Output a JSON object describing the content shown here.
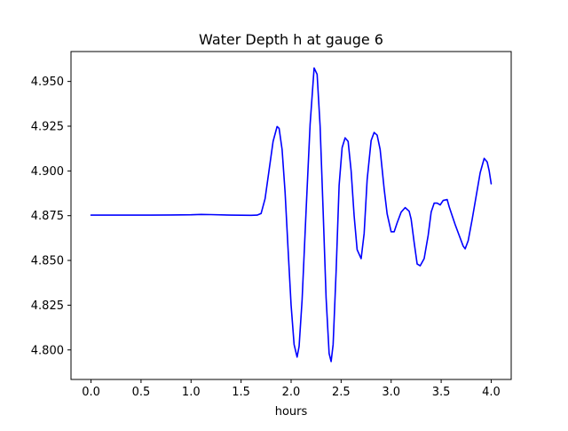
{
  "chart_data": {
    "type": "line",
    "title": "Water Depth h at gauge 6",
    "xlabel": "hours",
    "ylabel": "",
    "xlim": [
      -0.2,
      4.2
    ],
    "ylim": [
      4.7835,
      4.9667
    ],
    "xticks": [
      0.0,
      0.5,
      1.0,
      1.5,
      2.0,
      2.5,
      3.0,
      3.5,
      4.0
    ],
    "xtick_labels": [
      "0.0",
      "0.5",
      "1.0",
      "1.5",
      "2.0",
      "2.5",
      "3.0",
      "3.5",
      "4.0"
    ],
    "yticks": [
      4.8,
      4.825,
      4.85,
      4.875,
      4.9,
      4.925,
      4.95
    ],
    "ytick_labels": [
      "4.800",
      "4.825",
      "4.850",
      "4.875",
      "4.900",
      "4.925",
      "4.950"
    ],
    "grid": false,
    "line_color": "#0000ff",
    "series": [
      {
        "x": [
          0.0,
          0.2,
          0.4,
          0.6,
          0.8,
          1.0,
          1.1,
          1.2,
          1.4,
          1.6,
          1.66,
          1.7,
          1.74,
          1.78,
          1.82,
          1.86,
          1.88,
          1.91,
          1.94,
          1.97,
          2.0,
          2.03,
          2.06,
          2.08,
          2.11,
          2.15,
          2.19,
          2.23,
          2.26,
          2.29,
          2.32,
          2.35,
          2.38,
          2.4,
          2.42,
          2.45,
          2.48,
          2.51,
          2.54,
          2.57,
          2.6,
          2.63,
          2.66,
          2.7,
          2.73,
          2.76,
          2.8,
          2.83,
          2.86,
          2.89,
          2.93,
          2.96,
          3.0,
          3.03,
          3.06,
          3.1,
          3.14,
          3.18,
          3.2,
          3.23,
          3.26,
          3.29,
          3.33,
          3.37,
          3.4,
          3.43,
          3.46,
          3.49,
          3.52,
          3.56,
          3.58,
          3.61,
          3.64,
          3.68,
          3.72,
          3.74,
          3.77,
          3.81,
          3.85,
          3.89,
          3.93,
          3.96,
          3.98,
          4.0
        ],
        "y": [
          4.8753,
          4.8753,
          4.8753,
          4.8753,
          4.8754,
          4.8755,
          4.8757,
          4.8756,
          4.8753,
          4.8752,
          4.8753,
          4.8762,
          4.8845,
          4.9005,
          4.9165,
          4.9248,
          4.9238,
          4.912,
          4.888,
          4.856,
          4.825,
          4.803,
          4.796,
          4.802,
          4.828,
          4.878,
          4.926,
          4.9575,
          4.954,
          4.925,
          4.878,
          4.829,
          4.798,
          4.7935,
          4.803,
          4.844,
          4.892,
          4.913,
          4.9185,
          4.9165,
          4.9,
          4.875,
          4.856,
          4.851,
          4.865,
          4.895,
          4.917,
          4.9215,
          4.92,
          4.912,
          4.89,
          4.876,
          4.866,
          4.866,
          4.871,
          4.877,
          4.8795,
          4.8775,
          4.873,
          4.86,
          4.848,
          4.847,
          4.851,
          4.864,
          4.877,
          4.882,
          4.882,
          4.881,
          4.8835,
          4.884,
          4.88,
          4.875,
          4.87,
          4.864,
          4.858,
          4.8565,
          4.861,
          4.873,
          4.886,
          4.899,
          4.907,
          4.905,
          4.9,
          4.8928
        ]
      }
    ]
  }
}
